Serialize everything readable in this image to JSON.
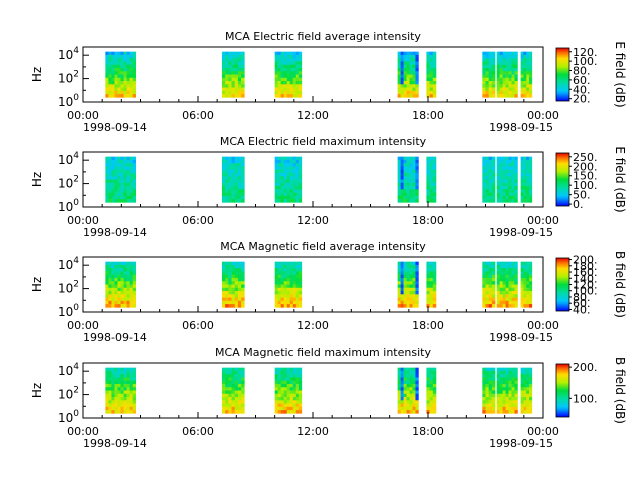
{
  "chart_data": [
    {
      "type": "heatmap",
      "title": "MCA  Electric field average intensity",
      "ylabel": "Hz",
      "yscale": "log",
      "ylim": [
        1,
        50000
      ],
      "yticks": [
        {
          "base": "10",
          "exp": "0"
        },
        {
          "base": "10",
          "exp": "2"
        },
        {
          "base": "10",
          "exp": "4"
        }
      ],
      "xticks": [
        "00:00",
        "06:00",
        "12:00",
        "18:00",
        "00:00"
      ],
      "date_start": "1998-09-14",
      "date_end": "1998-09-15",
      "colorbar": {
        "label": "E field (dB)",
        "range": [
          15,
          128
        ],
        "ticks": [
          "20.",
          "40.",
          "60.",
          "80.",
          "100.",
          "120."
        ],
        "colormap": "rainbow"
      },
      "data_intervals": [
        [
          "01:10",
          "02:45"
        ],
        [
          "07:15",
          "08:25"
        ],
        [
          "10:00",
          "11:25"
        ],
        [
          "16:25",
          "17:30"
        ],
        [
          "17:55",
          "18:25"
        ],
        [
          "20:50",
          "21:30"
        ],
        [
          "21:35",
          "22:40"
        ],
        [
          "22:50",
          "23:25"
        ]
      ]
    },
    {
      "type": "heatmap",
      "title": "MCA  Electric field maximum intensity",
      "ylabel": "Hz",
      "yscale": "log",
      "ylim": [
        1,
        50000
      ],
      "yticks": [
        {
          "base": "10",
          "exp": "0"
        },
        {
          "base": "10",
          "exp": "2"
        },
        {
          "base": "10",
          "exp": "4"
        }
      ],
      "xticks": [
        "00:00",
        "06:00",
        "12:00",
        "18:00",
        "00:00"
      ],
      "date_start": "1998-09-14",
      "date_end": "1998-09-15",
      "colorbar": {
        "label": "E field (dB)",
        "range": [
          -10,
          270
        ],
        "ticks": [
          "0.",
          "50.",
          "100.",
          "150.",
          "200.",
          "250."
        ],
        "colormap": "rainbow"
      },
      "data_intervals": [
        [
          "01:10",
          "02:45"
        ],
        [
          "07:15",
          "08:25"
        ],
        [
          "10:00",
          "11:25"
        ],
        [
          "16:25",
          "17:30"
        ],
        [
          "17:55",
          "18:25"
        ],
        [
          "20:50",
          "21:30"
        ],
        [
          "21:35",
          "22:40"
        ],
        [
          "22:50",
          "23:25"
        ]
      ]
    },
    {
      "type": "heatmap",
      "title": "MCA  Magnetic field average intensity",
      "ylabel": "Hz",
      "yscale": "log",
      "ylim": [
        1,
        50000
      ],
      "yticks": [
        {
          "base": "10",
          "exp": "0"
        },
        {
          "base": "10",
          "exp": "2"
        },
        {
          "base": "10",
          "exp": "4"
        }
      ],
      "xticks": [
        "00:00",
        "06:00",
        "12:00",
        "18:00",
        "00:00"
      ],
      "date_start": "1998-09-14",
      "date_end": "1998-09-15",
      "colorbar": {
        "label": "B field (dB)",
        "range": [
          35,
          205
        ],
        "ticks": [
          "40.",
          "60.",
          "80.",
          "100.",
          "120.",
          "140.",
          "160.",
          "180.",
          "200."
        ],
        "colormap": "rainbow"
      },
      "data_intervals": [
        [
          "01:10",
          "02:45"
        ],
        [
          "07:15",
          "08:25"
        ],
        [
          "10:00",
          "11:25"
        ],
        [
          "16:25",
          "17:30"
        ],
        [
          "17:55",
          "18:25"
        ],
        [
          "20:50",
          "21:30"
        ],
        [
          "21:35",
          "22:40"
        ],
        [
          "22:50",
          "23:25"
        ]
      ]
    },
    {
      "type": "heatmap",
      "title": "MCA  Magnetic field maximum intensity",
      "ylabel": "Hz",
      "yscale": "log",
      "ylim": [
        1,
        50000
      ],
      "yticks": [
        {
          "base": "10",
          "exp": "0"
        },
        {
          "base": "10",
          "exp": "2"
        },
        {
          "base": "10",
          "exp": "4"
        }
      ],
      "xticks": [
        "00:00",
        "06:00",
        "12:00",
        "18:00",
        "00:00"
      ],
      "date_start": "1998-09-14",
      "date_end": "1998-09-15",
      "colorbar": {
        "label": "B field (dB)",
        "range": [
          40,
          210
        ],
        "ticks": [
          "100.",
          "200."
        ],
        "colormap": "rainbow"
      },
      "data_intervals": [
        [
          "01:10",
          "02:45"
        ],
        [
          "07:15",
          "08:25"
        ],
        [
          "10:00",
          "11:25"
        ],
        [
          "16:25",
          "17:30"
        ],
        [
          "17:55",
          "18:25"
        ],
        [
          "20:50",
          "21:30"
        ],
        [
          "21:35",
          "22:40"
        ],
        [
          "22:50",
          "23:25"
        ]
      ]
    }
  ]
}
